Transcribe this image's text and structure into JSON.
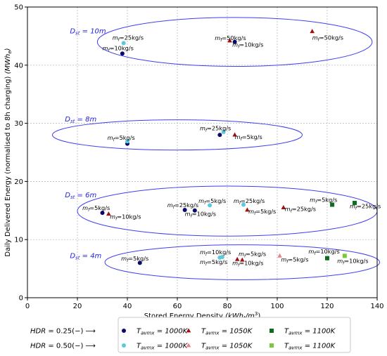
{
  "chart_data": {
    "type": "scatter",
    "title": "",
    "xlabel": "Stored Energy Density (kWh_t/m³)",
    "xlabel_parts": {
      "text": "Stored Energy Density ",
      "unit": "(kWh",
      "unit_sub": "t",
      "unit_tail": "/m",
      "unit_sup": "3",
      "close": ")"
    },
    "ylabel": "Daily Delivered Energy (normalised to 8h charging) (MWh_e)",
    "ylabel_parts": {
      "text": "Daily Delivered Energy (normalised to 8h charging) ",
      "unit": "(MWh",
      "unit_sub": "e",
      "close": ")"
    },
    "xlim": [
      0,
      140
    ],
    "ylim": [
      0,
      50
    ],
    "xticks": [
      0,
      20,
      40,
      60,
      80,
      100,
      120,
      140
    ],
    "yticks": [
      0,
      10,
      20,
      30,
      40,
      50
    ],
    "grid": true,
    "series": [
      {
        "hdr": "0.25",
        "temp": "1000",
        "marker": "circle",
        "color": "#0a0a6e",
        "points": [
          [
            38,
            42
          ],
          [
            83,
            44
          ],
          [
            40,
            26.5
          ],
          [
            77,
            28
          ],
          [
            30,
            14.6
          ],
          [
            63,
            15.1
          ],
          [
            67,
            15
          ],
          [
            45,
            6
          ]
        ]
      },
      {
        "hdr": "0.50",
        "temp": "1000",
        "marker": "circle",
        "color": "#5bc8e0",
        "points": [
          [
            38.5,
            43.8
          ],
          [
            40,
            26.9
          ],
          [
            78.5,
            28.5
          ],
          [
            73,
            15.9
          ],
          [
            86.5,
            16
          ],
          [
            78,
            7
          ],
          [
            77,
            6.9
          ]
        ]
      },
      {
        "hdr": "0.25",
        "temp": "1050",
        "marker": "triangle",
        "color": "#a01010",
        "points": [
          [
            81,
            44.2
          ],
          [
            114,
            45.8
          ],
          [
            83,
            28
          ],
          [
            32.5,
            14.4
          ],
          [
            88,
            15.1
          ],
          [
            102.5,
            15.5
          ],
          [
            84,
            6.6
          ],
          [
            86,
            6.5
          ]
        ]
      },
      {
        "hdr": "0.50",
        "temp": "1050",
        "marker": "triangle",
        "color": "#f08080",
        "points": [
          [
            101,
            7.2
          ]
        ]
      },
      {
        "hdr": "0.25",
        "temp": "1100",
        "marker": "square",
        "color": "#0b6e1e",
        "points": [
          [
            122,
            16
          ],
          [
            131,
            16.3
          ],
          [
            120,
            6.8
          ]
        ]
      },
      {
        "hdr": "0.50",
        "temp": "1100",
        "marker": "square",
        "color": "#7ac93a",
        "points": [
          [
            127,
            7.2
          ]
        ]
      }
    ],
    "groups": [
      {
        "label": "D",
        "label_sub": "st",
        "label_tail": " = 10m",
        "label_pos": [
          17,
          45.5
        ],
        "cx": 83,
        "cy": 44,
        "rx": 55,
        "ry": 4.2
      },
      {
        "label": "D",
        "label_sub": "st",
        "label_tail": " = 8m",
        "label_pos": [
          15,
          30.3
        ],
        "cx": 60,
        "cy": 28,
        "rx": 50,
        "ry": 2.6
      },
      {
        "label": "D",
        "label_sub": "st",
        "label_tail": " = 6m",
        "label_pos": [
          15,
          17.3
        ],
        "cx": 80,
        "cy": 14.9,
        "rx": 60,
        "ry": 4.3
      },
      {
        "label": "D",
        "label_sub": "st",
        "label_tail": " = 4m",
        "label_pos": [
          17,
          6.8
        ],
        "cx": 86,
        "cy": 6.1,
        "rx": 55,
        "ry": 3.0
      }
    ],
    "annotations": [
      {
        "rate": "25kg/s",
        "at": [
          34,
          44.4
        ]
      },
      {
        "rate": "10kg/s",
        "at": [
          30,
          42.6
        ]
      },
      {
        "rate": "50kg/s",
        "at": [
          75,
          44.3
        ]
      },
      {
        "rate": "10kg/s",
        "at": [
          82,
          43.2
        ]
      },
      {
        "rate": "50kg/s",
        "at": [
          114,
          44.4
        ]
      },
      {
        "rate": "25kg/s",
        "at": [
          69,
          28.8
        ]
      },
      {
        "rate": "5kg/s",
        "at": [
          83,
          27.3
        ]
      },
      {
        "rate": "5kg/s",
        "at": [
          32,
          27.2
        ]
      },
      {
        "rate": "5kg/s",
        "at": [
          22,
          15.1
        ]
      },
      {
        "rate": "10kg/s",
        "at": [
          33,
          13.6
        ]
      },
      {
        "rate": "25kg/s",
        "at": [
          56,
          15.6
        ]
      },
      {
        "rate": "10kg/s",
        "at": [
          63,
          14.1
        ]
      },
      {
        "rate": "5kg/s",
        "at": [
          68.5,
          16.3
        ]
      },
      {
        "rate": "25kg/s",
        "at": [
          82.5,
          16.3
        ]
      },
      {
        "rate": "5kg/s",
        "at": [
          88.5,
          14.5
        ]
      },
      {
        "rate": "25kg/s",
        "at": [
          103,
          14.9
        ]
      },
      {
        "rate": "5kg/s",
        "at": [
          113,
          16.5
        ]
      },
      {
        "rate": "25kg/s",
        "at": [
          129,
          15.4
        ]
      },
      {
        "rate": "5kg/s",
        "at": [
          37.5,
          6.4
        ]
      },
      {
        "rate": "10kg/s",
        "at": [
          69,
          7.5
        ]
      },
      {
        "rate": "5kg/s",
        "at": [
          69,
          5.8
        ]
      },
      {
        "rate": "5kg/s",
        "at": [
          84.5,
          7.2
        ]
      },
      {
        "rate": "10kg/s",
        "at": [
          82,
          5.6
        ]
      },
      {
        "rate": "5kg/s",
        "at": [
          101.5,
          6.2
        ]
      },
      {
        "rate": "10kg/s",
        "at": [
          112.5,
          7.6
        ]
      },
      {
        "rate": "10kg/s",
        "at": [
          124,
          6
        ]
      }
    ],
    "legend": {
      "placement": "bottom",
      "rows": [
        {
          "label": "HDR = 0.25(−) ⟶",
          "entries": [
            {
              "marker": "circle",
              "color": "#0a0a6e",
              "text": "T",
              "sub": "avmx",
              "tail": " = 1000K"
            },
            {
              "marker": "triangle",
              "color": "#a01010",
              "text": "T",
              "sub": "avmx",
              "tail": " = 1050K"
            },
            {
              "marker": "square",
              "color": "#0b6e1e",
              "text": "T",
              "sub": "avmx",
              "tail": " = 1100K"
            }
          ]
        },
        {
          "label": "HDR = 0.50(−) ⟶",
          "entries": [
            {
              "marker": "circle",
              "color": "#5bc8e0",
              "text": "T",
              "sub": "avmx",
              "tail": " = 1000K"
            },
            {
              "marker": "triangle",
              "color": "#f08080",
              "text": "T",
              "sub": "avmx",
              "tail": " = 1050K"
            },
            {
              "marker": "square",
              "color": "#7ac93a",
              "text": "T",
              "sub": "avmx",
              "tail": " = 1100K"
            }
          ]
        }
      ]
    },
    "colors": {
      "ellipse": "#3f3ff0",
      "group_label": "#2323e0",
      "grid": "#b0b0b0",
      "axis": "#000000"
    }
  }
}
